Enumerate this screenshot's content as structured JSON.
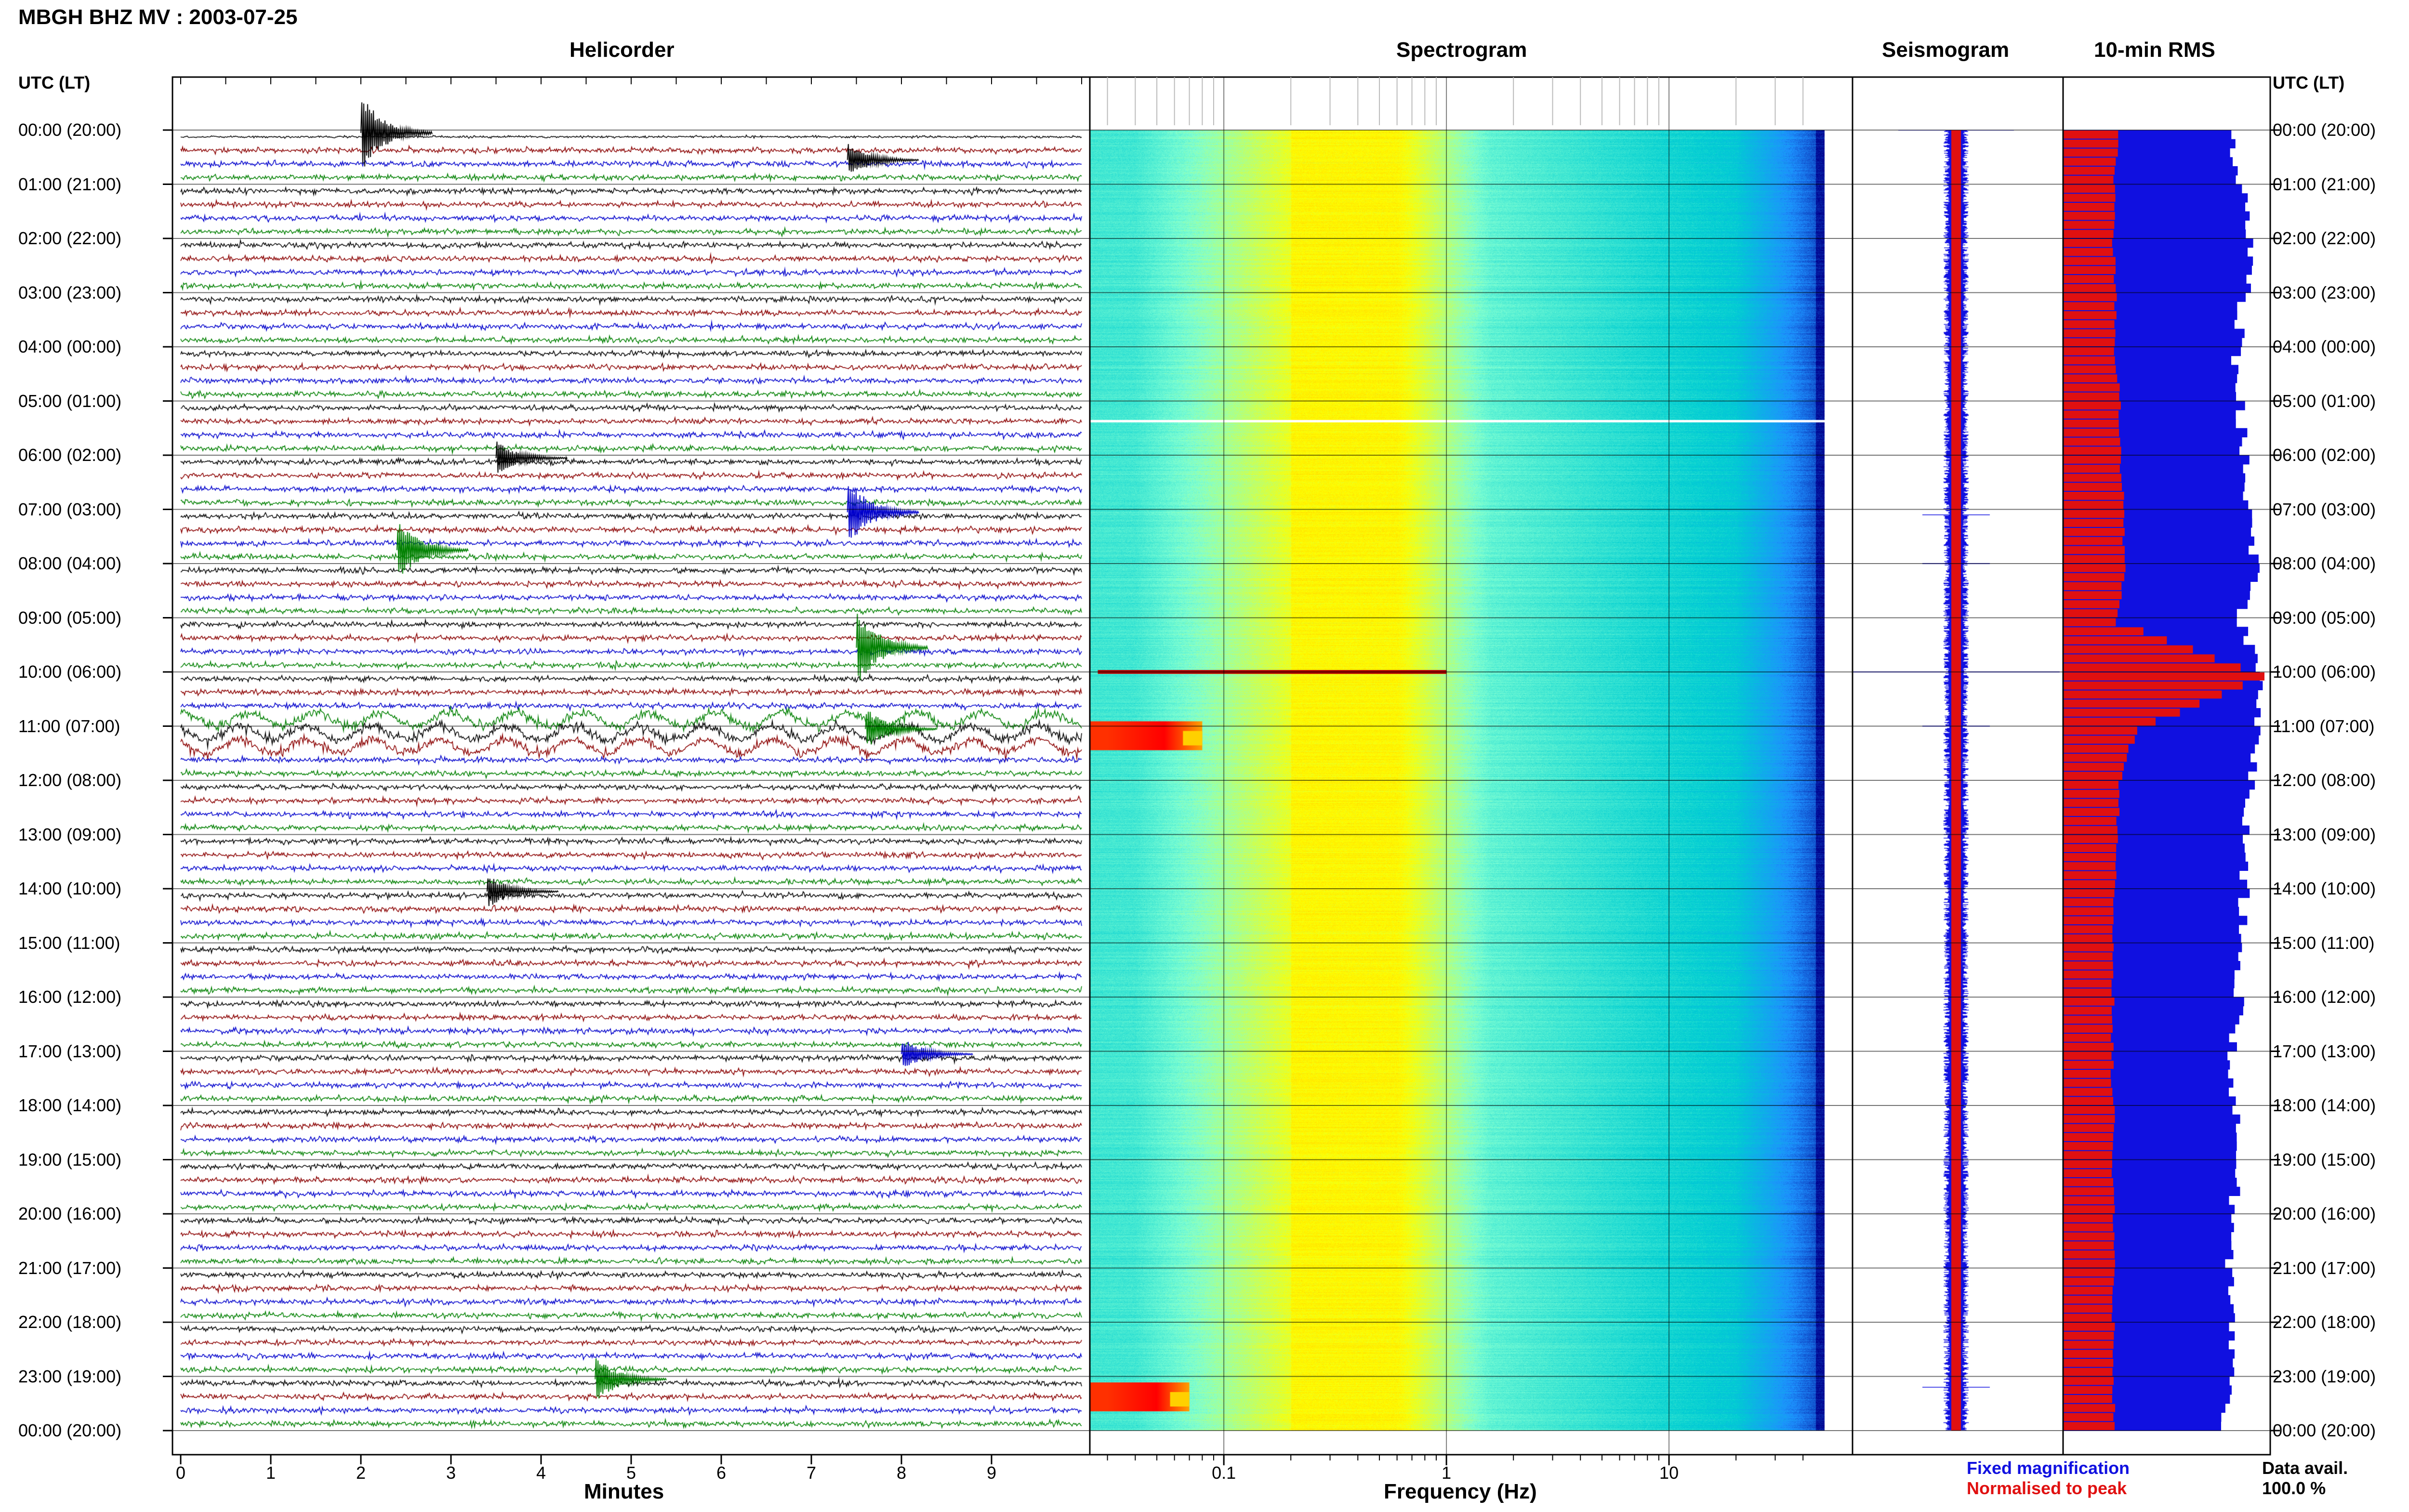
{
  "header": {
    "title": "MBGH BHZ MV : 2003-07-25"
  },
  "panels": {
    "helicorder": {
      "title": "Helicorder",
      "xlabel": "Minutes",
      "xticks": [
        "0",
        "1",
        "2",
        "3",
        "4",
        "5",
        "6",
        "7",
        "8",
        "9"
      ]
    },
    "spectrogram": {
      "title": "Spectrogram",
      "xlabel": "Frequency (Hz)",
      "xticks": [
        "0.1",
        "1",
        "10"
      ]
    },
    "seismogram": {
      "title": "Seismogram"
    },
    "rms": {
      "title": "10-min RMS"
    }
  },
  "axis": {
    "left_header": "UTC (LT)",
    "right_header": "UTC (LT)",
    "time_labels": [
      "00:00 (20:00)",
      "01:00 (21:00)",
      "02:00 (22:00)",
      "03:00 (23:00)",
      "04:00 (00:00)",
      "05:00 (01:00)",
      "06:00 (02:00)",
      "07:00 (03:00)",
      "08:00 (04:00)",
      "09:00 (05:00)",
      "10:00 (06:00)",
      "11:00 (07:00)",
      "12:00 (08:00)",
      "13:00 (09:00)",
      "14:00 (10:00)",
      "15:00 (11:00)",
      "16:00 (12:00)",
      "17:00 (13:00)",
      "18:00 (14:00)",
      "19:00 (15:00)",
      "20:00 (16:00)",
      "21:00 (17:00)",
      "22:00 (18:00)",
      "23:00 (19:00)",
      "00:00 (20:00)"
    ]
  },
  "legend": {
    "fixed": "Fixed magnification",
    "normalised": "Normalised to peak",
    "fixed_color": "#1010e0",
    "normalised_color": "#e01010"
  },
  "data_avail": {
    "label": "Data avail.",
    "value": "100.0 %"
  },
  "chart_data": [
    {
      "type": "line",
      "panel": "helicorder",
      "xlabel": "Minutes",
      "xlim": [
        0,
        10
      ],
      "trace_colors": [
        "#000000",
        "#8b0000",
        "#0000cc",
        "#008000"
      ],
      "events": [
        {
          "hour": 0.0,
          "minute": 2.0,
          "amp": 3.0,
          "color": "#000000"
        },
        {
          "hour": 0.5,
          "minute": 7.4,
          "amp": 1.4,
          "color": "#000000"
        },
        {
          "hour": 6.0,
          "minute": 3.5,
          "amp": 1.3,
          "color": "#000000"
        },
        {
          "hour": 7.0,
          "minute": 7.4,
          "amp": 2.6,
          "color": "#0000cc"
        },
        {
          "hour": 7.7,
          "minute": 2.4,
          "amp": 2.4,
          "color": "#008000"
        },
        {
          "hour": 9.5,
          "minute": 7.5,
          "amp": 3.0,
          "color": "#008000"
        },
        {
          "hour": 11.0,
          "minute": 7.6,
          "amp": 1.6,
          "color": "#008000"
        },
        {
          "hour": 14.0,
          "minute": 3.4,
          "amp": 1.3,
          "color": "#000000"
        },
        {
          "hour": 17.0,
          "minute": 8.0,
          "amp": 1.3,
          "color": "#0000cc"
        },
        {
          "hour": 23.0,
          "minute": 4.6,
          "amp": 1.8,
          "color": "#008000"
        }
      ],
      "noisy_period_hours": [
        10.7,
        11.4
      ]
    },
    {
      "type": "heatmap",
      "panel": "spectrogram",
      "xlabel": "Frequency (Hz)",
      "xscale": "log",
      "xlim": [
        0.025,
        50
      ],
      "xticks": [
        0.1,
        1,
        10
      ],
      "colormap": [
        "#00008b",
        "#1e90ff",
        "#00ced1",
        "#7fffd4",
        "#ffff00",
        "#ffa500",
        "#ff0000"
      ],
      "peak_band_hz": [
        0.2,
        0.6
      ],
      "events": [
        {
          "hour": 10.0,
          "fmin": 0.03,
          "fmax": 1.0
        },
        {
          "hour": 11.0,
          "fmin": 0.03,
          "fmax": 0.08
        },
        {
          "hour": 23.2,
          "fmin": 0.03,
          "fmax": 0.07
        }
      ]
    },
    {
      "type": "line",
      "panel": "seismogram",
      "series": [
        {
          "name": "Fixed magnification",
          "color": "#1010e0"
        },
        {
          "name": "Normalised to peak",
          "color": "#e01010"
        }
      ],
      "spikes_hours": [
        0.0,
        7.1,
        8.0,
        10.0,
        11.0,
        23.2
      ]
    },
    {
      "type": "bar",
      "panel": "rms",
      "orientation": "horizontal",
      "interval_minutes": 10,
      "series": [
        {
          "name": "Fixed magnification",
          "color": "#1010e0",
          "hourly": [
            0.82,
            0.9,
            0.92,
            0.9,
            0.86,
            0.88,
            0.9,
            0.92,
            0.95,
            0.88,
            1.0,
            0.97,
            0.93,
            0.91,
            0.9,
            0.89,
            0.87,
            0.84,
            0.85,
            0.86,
            0.85,
            0.82,
            0.84,
            0.83,
            0.8
          ]
        },
        {
          "name": "Normalised to peak",
          "color": "#e01010",
          "hourly": [
            0.28,
            0.25,
            0.25,
            0.26,
            0.26,
            0.28,
            0.28,
            0.3,
            0.3,
            0.27,
            1.0,
            0.36,
            0.28,
            0.27,
            0.26,
            0.25,
            0.25,
            0.24,
            0.25,
            0.25,
            0.25,
            0.25,
            0.25,
            0.25,
            0.25
          ]
        }
      ]
    }
  ]
}
